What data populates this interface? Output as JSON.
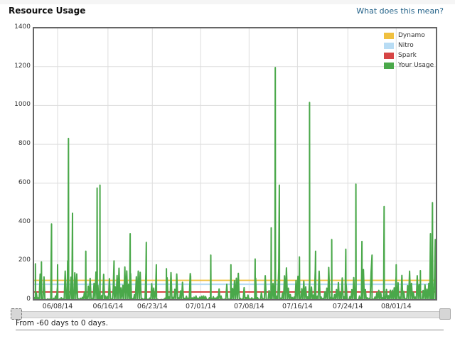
{
  "header": {
    "title": "Resource Usage",
    "help_link": "What does this mean?"
  },
  "slider": {
    "range_text": "From -60 days to 0 days.",
    "min_days": -60,
    "max_days": 0
  },
  "colors": {
    "dynamo": "#f0c040",
    "nitro": "#b8dcf4",
    "spark": "#d64545",
    "usage": "#4aa84a",
    "grid": "#dddddd",
    "axis": "#666666"
  },
  "chart_data": {
    "type": "line",
    "title": "Resource Usage",
    "xlabel": "",
    "ylabel": "",
    "ylim": [
      0,
      1400
    ],
    "yticks": [
      0,
      200,
      400,
      600,
      800,
      1000,
      1200,
      1400
    ],
    "xticks": [
      "06/08/14",
      "06/16/14",
      "06/23/14",
      "07/01/14",
      "07/08/14",
      "07/16/14",
      "07/24/14",
      "08/01/14"
    ],
    "grid": true,
    "legend_position": "top-right",
    "legend": [
      "Dynamo",
      "Nitro",
      "Spark",
      "Your Usage"
    ],
    "series": [
      {
        "name": "Dynamo",
        "type": "constant",
        "value": 100
      },
      {
        "name": "Nitro",
        "type": "constant",
        "value": 80
      },
      {
        "name": "Spark",
        "type": "constant",
        "value": 40
      },
      {
        "name": "Your Usage",
        "type": "spikes",
        "peaks": [
          {
            "x": 0.005,
            "y": 185
          },
          {
            "x": 0.02,
            "y": 195
          },
          {
            "x": 0.045,
            "y": 390
          },
          {
            "x": 0.06,
            "y": 180
          },
          {
            "x": 0.085,
            "y": 200
          },
          {
            "x": 0.087,
            "y": 830
          },
          {
            "x": 0.097,
            "y": 445
          },
          {
            "x": 0.13,
            "y": 250
          },
          {
            "x": 0.158,
            "y": 575
          },
          {
            "x": 0.165,
            "y": 590
          },
          {
            "x": 0.2,
            "y": 200
          },
          {
            "x": 0.24,
            "y": 340
          },
          {
            "x": 0.28,
            "y": 295
          },
          {
            "x": 0.305,
            "y": 180
          },
          {
            "x": 0.33,
            "y": 160
          },
          {
            "x": 0.39,
            "y": 120
          },
          {
            "x": 0.44,
            "y": 230
          },
          {
            "x": 0.49,
            "y": 180
          },
          {
            "x": 0.55,
            "y": 210
          },
          {
            "x": 0.59,
            "y": 370
          },
          {
            "x": 0.6,
            "y": 1195
          },
          {
            "x": 0.61,
            "y": 590
          },
          {
            "x": 0.66,
            "y": 220
          },
          {
            "x": 0.685,
            "y": 1015
          },
          {
            "x": 0.7,
            "y": 250
          },
          {
            "x": 0.74,
            "y": 310
          },
          {
            "x": 0.775,
            "y": 260
          },
          {
            "x": 0.8,
            "y": 595
          },
          {
            "x": 0.815,
            "y": 300
          },
          {
            "x": 0.84,
            "y": 230
          },
          {
            "x": 0.87,
            "y": 480
          },
          {
            "x": 0.9,
            "y": 180
          },
          {
            "x": 0.96,
            "y": 150
          },
          {
            "x": 0.985,
            "y": 340
          },
          {
            "x": 0.99,
            "y": 500
          },
          {
            "x": 0.997,
            "y": 310
          }
        ],
        "dense_ranges": [
          [
            0.12,
            0.3
          ],
          [
            0.56,
            0.83
          ],
          [
            0.9,
            1.0
          ]
        ]
      }
    ]
  }
}
